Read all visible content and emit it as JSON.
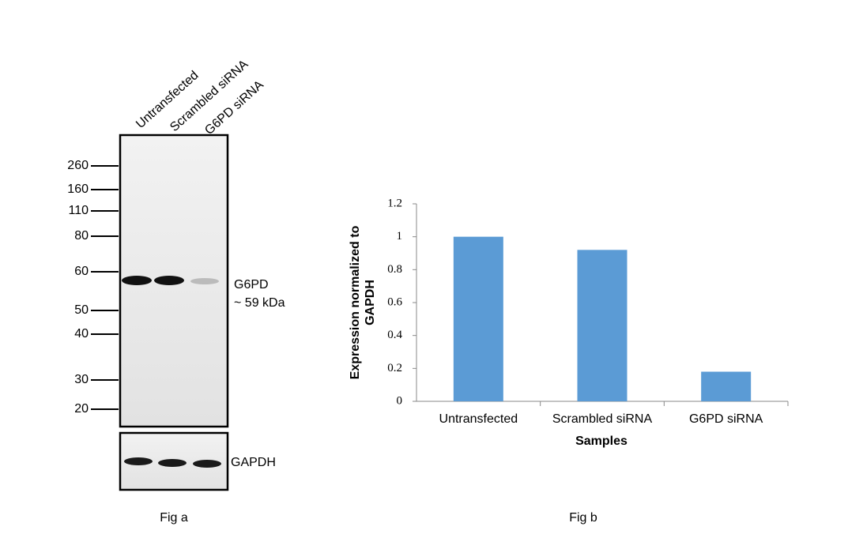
{
  "blot": {
    "lanes": [
      "Untransfected",
      "Scrambled siRNA",
      "G6PD siRNA"
    ],
    "markers": [
      "260",
      "160",
      "110",
      "80",
      "60",
      "50",
      "40",
      "30",
      "20"
    ],
    "band_label": "G6PD",
    "band_size": "~ 59 kDa",
    "loading_label": "GAPDH",
    "caption": "Fig a"
  },
  "chart_data": {
    "type": "bar",
    "caption": "Fig b",
    "y_label_lines": [
      "Expression  normalized to",
      "GAPDH"
    ],
    "x_label": "Samples",
    "categories": [
      "Untransfected",
      "Scrambled siRNA",
      "G6PD siRNA"
    ],
    "values": [
      1.0,
      0.92,
      0.18
    ],
    "color": "#5b9bd5",
    "ylim": [
      0,
      1.2
    ],
    "yticks": [
      0,
      0.2,
      0.4,
      0.6,
      0.8,
      1,
      1.2
    ]
  }
}
